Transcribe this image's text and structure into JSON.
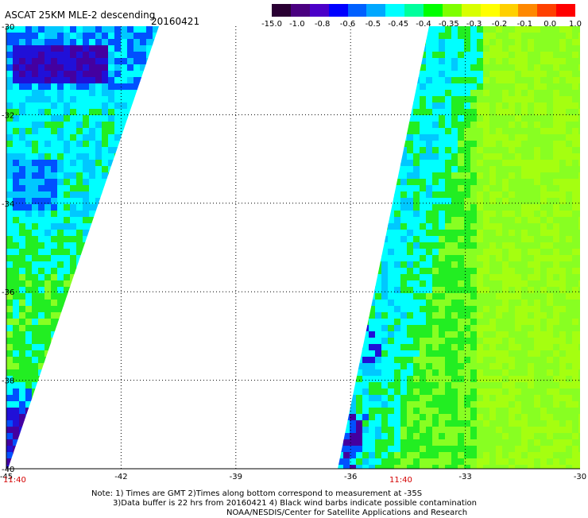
{
  "header": {
    "title": "ASCAT 25KM MLE-2 descending",
    "date": "20160421"
  },
  "colorbar": {
    "labels": [
      "-15.0",
      "-1.0",
      "-0.8",
      "-0.6",
      "-0.5",
      "-0.45",
      "-0.4",
      "-0.35",
      "-0.3",
      "-0.2",
      "-0.1",
      "0.0",
      "1.0"
    ],
    "colors": [
      "#2a0033",
      "#4a0080",
      "#4b00c8",
      "#0000ff",
      "#0060ff",
      "#00a8ff",
      "#00ffff",
      "#00ff9c",
      "#00ff00",
      "#7fff00",
      "#d8ff00",
      "#ffff00",
      "#ffd000",
      "#ff8800",
      "#ff4000",
      "#ff0000"
    ]
  },
  "map": {
    "lat_labels": [
      "-30",
      "-32",
      "-34",
      "-36",
      "-38",
      "-40"
    ],
    "lon_labels": [
      "-45",
      "-42",
      "-39",
      "-36",
      "-33",
      "-30"
    ],
    "colors": {
      "green": "#22ee22",
      "lime": "#88ff22",
      "yellow_green": "#a5ff10",
      "cyan": "#00ffff",
      "light_blue": "#00c8ff",
      "blue": "#0050ff",
      "deep_blue": "#2010d8",
      "purple": "#4400a0"
    }
  },
  "pass_times": [
    "11:40",
    "11:40"
  ],
  "notes": [
    "Note: 1) Times are GMT 2)Times along bottom correspond to measurement at -35S",
    "3)Data buffer is 22 hrs from 20160421 4) Black wind barbs indicate possible contamination",
    "NOAA/NESDIS/Center for Satellite Applications and Research"
  ]
}
